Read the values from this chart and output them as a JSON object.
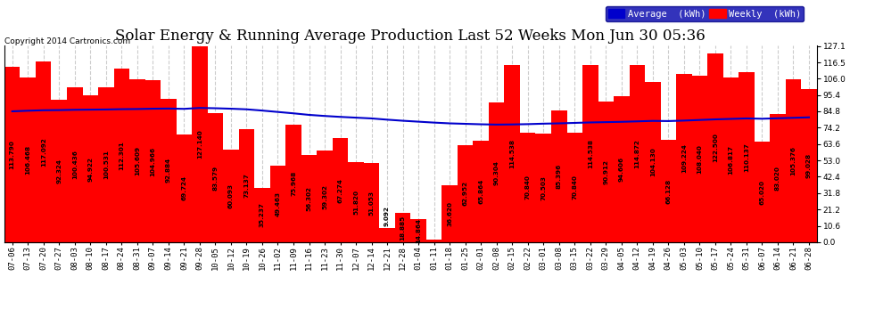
{
  "title": "Solar Energy & Running Average Production Last 52 Weeks Mon Jun 30 05:36",
  "copyright": "Copyright 2014 Cartronics.com",
  "ylabel_right_ticks": [
    0.0,
    10.6,
    21.2,
    31.8,
    42.4,
    53.0,
    63.6,
    74.2,
    84.8,
    95.4,
    106.0,
    116.5,
    127.1
  ],
  "bar_color": "#ff0000",
  "avg_line_color": "#0000cc",
  "background_color": "#ffffff",
  "plot_bg_color": "#ffffff",
  "categories": [
    "07-06",
    "07-13",
    "07-20",
    "07-27",
    "08-03",
    "08-10",
    "08-17",
    "08-24",
    "08-31",
    "09-07",
    "09-14",
    "09-21",
    "09-28",
    "10-05",
    "10-12",
    "10-19",
    "10-26",
    "11-02",
    "11-09",
    "11-16",
    "11-23",
    "11-30",
    "12-07",
    "12-14",
    "12-21",
    "12-28",
    "01-04",
    "01-11",
    "01-18",
    "01-25",
    "02-01",
    "02-08",
    "02-15",
    "02-22",
    "03-01",
    "03-08",
    "03-15",
    "03-22",
    "03-29",
    "04-05",
    "04-12",
    "04-19",
    "04-26",
    "05-03",
    "05-10",
    "05-17",
    "05-24",
    "05-31",
    "06-07",
    "06-14",
    "06-21",
    "06-28"
  ],
  "weekly_values": [
    113.79,
    106.468,
    117.092,
    92.324,
    100.436,
    94.922,
    100.531,
    112.301,
    105.609,
    104.966,
    92.884,
    69.724,
    127.14,
    83.579,
    60.093,
    73.137,
    35.237,
    49.463,
    75.968,
    56.302,
    59.302,
    67.274,
    51.82,
    51.053,
    9.092,
    18.885,
    14.864,
    1.752,
    36.62,
    62.952,
    65.864,
    90.304,
    114.538,
    70.84,
    70.503,
    85.396,
    70.84,
    114.538,
    90.912,
    94.606,
    114.872,
    104.13,
    66.128,
    109.224,
    108.04,
    122.5,
    106.817,
    110.137,
    65.02,
    83.02,
    105.376,
    99.028
  ],
  "avg_values": [
    84.8,
    85.2,
    85.5,
    85.6,
    85.8,
    85.9,
    86.0,
    86.2,
    86.3,
    86.5,
    86.6,
    86.4,
    87.0,
    86.8,
    86.5,
    86.1,
    85.3,
    84.4,
    83.5,
    82.5,
    81.8,
    81.2,
    80.7,
    80.2,
    79.4,
    78.7,
    78.1,
    77.5,
    77.0,
    76.7,
    76.4,
    76.2,
    76.3,
    76.5,
    76.8,
    77.0,
    77.3,
    77.6,
    77.8,
    78.0,
    78.3,
    78.6,
    78.5,
    78.8,
    79.2,
    79.6,
    79.9,
    80.2,
    80.0,
    80.3,
    80.6,
    80.9
  ],
  "legend_avg_color": "#0000cc",
  "legend_weekly_color": "#ff0000",
  "grid_color": "#cccccc",
  "value_fontsize": 5.2,
  "tick_fontsize": 6.5,
  "title_fontsize": 12,
  "ymax": 127.1
}
